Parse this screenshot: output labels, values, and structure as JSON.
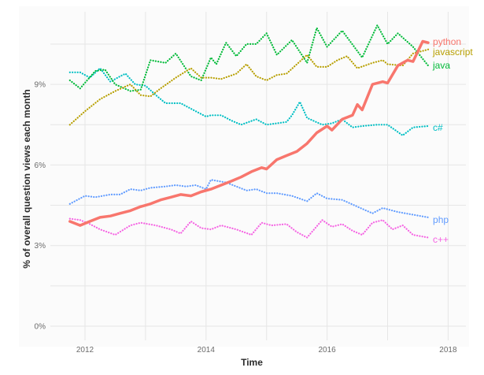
{
  "chart_data": {
    "type": "line",
    "title": "",
    "xlabel": "Time",
    "ylabel": "% of overall question views each month",
    "xlim": [
      2011.75,
      2018.1
    ],
    "ylim": [
      0,
      11.6
    ],
    "x_ticks": [
      2012,
      2014,
      2016,
      2018
    ],
    "x_tick_labels": [
      "2012",
      "2014",
      "2016",
      "2018"
    ],
    "x_minor_gridlines": [
      2013,
      2015,
      2017
    ],
    "y_ticks": [
      0,
      3,
      6,
      9
    ],
    "y_tick_labels": [
      "0%",
      "3%",
      "6%",
      "9%"
    ],
    "y_minor_gridlines": [
      1.5,
      4.5,
      7.5,
      10.5
    ],
    "grid": true,
    "legend": "direct labels at line ends (right)",
    "series": [
      {
        "name": "python",
        "color": "#F8766D",
        "style": "solid",
        "width": 3.5,
        "label_offset": 0,
        "points": [
          [
            2011.75,
            3.9
          ],
          [
            2011.92,
            3.75
          ],
          [
            2012.08,
            3.9
          ],
          [
            2012.25,
            4.05
          ],
          [
            2012.42,
            4.1
          ],
          [
            2012.58,
            4.2
          ],
          [
            2012.75,
            4.3
          ],
          [
            2012.92,
            4.45
          ],
          [
            2013.08,
            4.55
          ],
          [
            2013.25,
            4.7
          ],
          [
            2013.42,
            4.8
          ],
          [
            2013.58,
            4.9
          ],
          [
            2013.75,
            4.85
          ],
          [
            2013.92,
            5.0
          ],
          [
            2014.08,
            5.1
          ],
          [
            2014.25,
            5.25
          ],
          [
            2014.42,
            5.4
          ],
          [
            2014.58,
            5.55
          ],
          [
            2014.75,
            5.75
          ],
          [
            2014.92,
            5.9
          ],
          [
            2015.0,
            5.85
          ],
          [
            2015.17,
            6.2
          ],
          [
            2015.33,
            6.35
          ],
          [
            2015.5,
            6.5
          ],
          [
            2015.67,
            6.8
          ],
          [
            2015.83,
            7.2
          ],
          [
            2016.0,
            7.45
          ],
          [
            2016.08,
            7.3
          ],
          [
            2016.25,
            7.7
          ],
          [
            2016.42,
            7.85
          ],
          [
            2016.5,
            8.25
          ],
          [
            2016.58,
            8.05
          ],
          [
            2016.75,
            9.0
          ],
          [
            2016.92,
            9.1
          ],
          [
            2017.0,
            9.05
          ],
          [
            2017.17,
            9.7
          ],
          [
            2017.33,
            9.9
          ],
          [
            2017.42,
            9.85
          ],
          [
            2017.58,
            10.6
          ],
          [
            2017.67,
            10.55
          ]
        ]
      },
      {
        "name": "javascript",
        "color": "#B79F00",
        "style": "dotted",
        "width": 1.6,
        "label_offset": 0,
        "points": [
          [
            2011.75,
            7.5
          ],
          [
            2012.0,
            8.0
          ],
          [
            2012.25,
            8.45
          ],
          [
            2012.5,
            8.75
          ],
          [
            2012.75,
            9.0
          ],
          [
            2012.92,
            8.6
          ],
          [
            2013.08,
            8.55
          ],
          [
            2013.25,
            8.85
          ],
          [
            2013.5,
            9.25
          ],
          [
            2013.75,
            9.6
          ],
          [
            2013.92,
            9.25
          ],
          [
            2014.08,
            9.25
          ],
          [
            2014.25,
            9.2
          ],
          [
            2014.5,
            9.4
          ],
          [
            2014.67,
            9.75
          ],
          [
            2014.83,
            9.3
          ],
          [
            2015.0,
            9.15
          ],
          [
            2015.17,
            9.35
          ],
          [
            2015.33,
            9.4
          ],
          [
            2015.5,
            9.75
          ],
          [
            2015.67,
            10.1
          ],
          [
            2015.83,
            9.65
          ],
          [
            2016.0,
            9.65
          ],
          [
            2016.17,
            9.9
          ],
          [
            2016.33,
            10.05
          ],
          [
            2016.5,
            9.6
          ],
          [
            2016.75,
            9.8
          ],
          [
            2016.92,
            9.9
          ],
          [
            2017.0,
            9.75
          ],
          [
            2017.25,
            9.7
          ],
          [
            2017.42,
            10.15
          ],
          [
            2017.67,
            10.3
          ]
        ]
      },
      {
        "name": "java",
        "color": "#00BA38",
        "style": "dotted",
        "width": 1.6,
        "label_offset": 0,
        "points": [
          [
            2011.75,
            9.15
          ],
          [
            2011.92,
            8.85
          ],
          [
            2012.17,
            9.5
          ],
          [
            2012.33,
            9.55
          ],
          [
            2012.5,
            9.0
          ],
          [
            2012.75,
            8.75
          ],
          [
            2012.92,
            8.8
          ],
          [
            2013.08,
            9.9
          ],
          [
            2013.33,
            9.8
          ],
          [
            2013.5,
            10.15
          ],
          [
            2013.75,
            9.3
          ],
          [
            2013.92,
            9.15
          ],
          [
            2014.08,
            10.0
          ],
          [
            2014.17,
            9.75
          ],
          [
            2014.33,
            10.55
          ],
          [
            2014.5,
            10.05
          ],
          [
            2014.67,
            10.5
          ],
          [
            2014.83,
            10.5
          ],
          [
            2015.0,
            10.9
          ],
          [
            2015.17,
            10.1
          ],
          [
            2015.42,
            10.65
          ],
          [
            2015.67,
            9.8
          ],
          [
            2015.83,
            11.1
          ],
          [
            2016.0,
            10.4
          ],
          [
            2016.25,
            11.0
          ],
          [
            2016.58,
            10.0
          ],
          [
            2016.83,
            11.2
          ],
          [
            2017.0,
            10.5
          ],
          [
            2017.17,
            10.9
          ],
          [
            2017.42,
            10.4
          ],
          [
            2017.67,
            9.7
          ]
        ]
      },
      {
        "name": "c#",
        "color": "#00BFC4",
        "style": "dotted",
        "width": 1.6,
        "label_offset": 0,
        "points": [
          [
            2011.75,
            9.45
          ],
          [
            2011.92,
            9.45
          ],
          [
            2012.08,
            9.25
          ],
          [
            2012.25,
            9.6
          ],
          [
            2012.42,
            9.1
          ],
          [
            2012.58,
            9.3
          ],
          [
            2012.67,
            9.4
          ],
          [
            2012.83,
            9.0
          ],
          [
            2013.0,
            8.95
          ],
          [
            2013.17,
            8.6
          ],
          [
            2013.33,
            8.3
          ],
          [
            2013.58,
            8.3
          ],
          [
            2013.83,
            8.0
          ],
          [
            2014.0,
            7.8
          ],
          [
            2014.08,
            7.85
          ],
          [
            2014.25,
            7.85
          ],
          [
            2014.42,
            7.65
          ],
          [
            2014.58,
            7.5
          ],
          [
            2014.83,
            7.7
          ],
          [
            2015.0,
            7.5
          ],
          [
            2015.33,
            7.6
          ],
          [
            2015.42,
            7.85
          ],
          [
            2015.55,
            8.35
          ],
          [
            2015.67,
            7.75
          ],
          [
            2015.92,
            7.5
          ],
          [
            2016.08,
            7.55
          ],
          [
            2016.25,
            7.7
          ],
          [
            2016.42,
            7.4
          ],
          [
            2016.58,
            7.45
          ],
          [
            2016.83,
            7.5
          ],
          [
            2017.0,
            7.5
          ],
          [
            2017.25,
            7.1
          ],
          [
            2017.42,
            7.4
          ],
          [
            2017.67,
            7.45
          ]
        ]
      },
      {
        "name": "php",
        "color": "#619CFF",
        "style": "dotted",
        "width": 1.6,
        "label_offset": 0,
        "points": [
          [
            2011.75,
            4.55
          ],
          [
            2012.0,
            4.85
          ],
          [
            2012.17,
            4.8
          ],
          [
            2012.42,
            4.9
          ],
          [
            2012.58,
            4.9
          ],
          [
            2012.75,
            5.1
          ],
          [
            2012.92,
            5.05
          ],
          [
            2013.08,
            5.15
          ],
          [
            2013.33,
            5.2
          ],
          [
            2013.5,
            5.25
          ],
          [
            2013.67,
            5.2
          ],
          [
            2013.83,
            5.25
          ],
          [
            2014.0,
            5.1
          ],
          [
            2014.08,
            5.45
          ],
          [
            2014.33,
            5.35
          ],
          [
            2014.5,
            5.2
          ],
          [
            2014.67,
            5.05
          ],
          [
            2014.83,
            5.1
          ],
          [
            2015.0,
            4.95
          ],
          [
            2015.17,
            4.95
          ],
          [
            2015.42,
            4.85
          ],
          [
            2015.67,
            4.65
          ],
          [
            2015.83,
            4.95
          ],
          [
            2016.0,
            4.75
          ],
          [
            2016.25,
            4.7
          ],
          [
            2016.5,
            4.45
          ],
          [
            2016.75,
            4.2
          ],
          [
            2016.92,
            4.4
          ],
          [
            2017.17,
            4.25
          ],
          [
            2017.42,
            4.15
          ],
          [
            2017.67,
            4.05
          ]
        ]
      },
      {
        "name": "c++",
        "color": "#F564E3",
        "style": "dotted",
        "width": 1.6,
        "label_offset": 0,
        "points": [
          [
            2011.75,
            4.0
          ],
          [
            2011.92,
            3.95
          ],
          [
            2012.08,
            3.8
          ],
          [
            2012.25,
            3.6
          ],
          [
            2012.5,
            3.4
          ],
          [
            2012.75,
            3.75
          ],
          [
            2012.92,
            3.85
          ],
          [
            2013.17,
            3.75
          ],
          [
            2013.42,
            3.6
          ],
          [
            2013.58,
            3.45
          ],
          [
            2013.75,
            3.9
          ],
          [
            2013.92,
            3.65
          ],
          [
            2014.08,
            3.6
          ],
          [
            2014.25,
            3.75
          ],
          [
            2014.5,
            3.6
          ],
          [
            2014.75,
            3.4
          ],
          [
            2014.92,
            3.85
          ],
          [
            2015.08,
            3.75
          ],
          [
            2015.33,
            3.8
          ],
          [
            2015.5,
            3.5
          ],
          [
            2015.67,
            3.3
          ],
          [
            2015.92,
            3.95
          ],
          [
            2016.08,
            3.7
          ],
          [
            2016.25,
            3.8
          ],
          [
            2016.42,
            3.55
          ],
          [
            2016.58,
            3.4
          ],
          [
            2016.75,
            3.85
          ],
          [
            2016.92,
            3.95
          ],
          [
            2017.08,
            3.6
          ],
          [
            2017.25,
            3.75
          ],
          [
            2017.42,
            3.4
          ],
          [
            2017.67,
            3.3
          ]
        ]
      }
    ]
  },
  "axes": {
    "xlabel": "Time",
    "ylabel": "% of overall question views each month"
  }
}
